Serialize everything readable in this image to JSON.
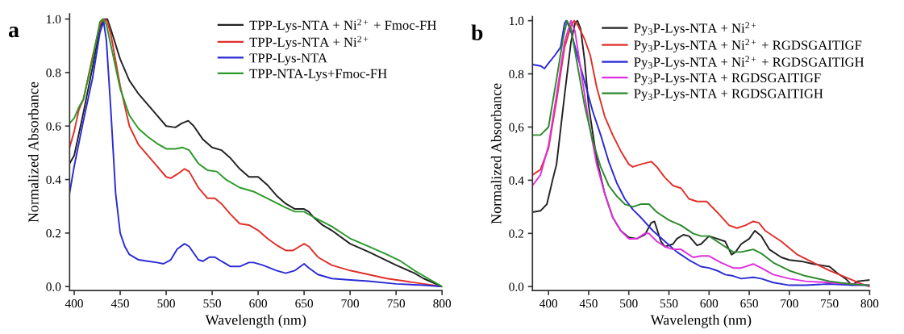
{
  "chart_data": [
    {
      "type": "line",
      "xlabel": "Wavelength (nm)",
      "ylabel": "Normalized Absorbance",
      "annotations": [
        "a"
      ],
      "legend": "top right",
      "grid": false,
      "marker": "none",
      "line_style": "solid",
      "xlim": [
        395,
        800
      ],
      "ylim": [
        -0.015,
        1.02
      ],
      "xticks": [
        400,
        450,
        500,
        550,
        600,
        650,
        700,
        750,
        800
      ],
      "yticks": [
        {
          "value": 0,
          "label": "0.0"
        },
        0.2,
        0.4,
        0.6,
        0.8,
        {
          "value": 1,
          "label": "1.0"
        }
      ],
      "series": [
        {
          "name": "TPP-Lys-NTA + Ni$^{2+}$ + Fmoc-FH",
          "color": "#222222",
          "x": [
            395,
            400,
            410,
            420,
            428,
            433,
            436,
            440,
            450,
            460,
            470,
            480,
            490,
            500,
            510,
            517,
            524,
            530,
            540,
            550,
            560,
            570,
            580,
            590,
            600,
            610,
            620,
            630,
            640,
            650,
            655,
            660,
            670,
            680,
            700,
            720,
            750,
            770,
            780,
            800
          ],
          "values": [
            0.46,
            0.49,
            0.65,
            0.82,
            0.97,
            1.0,
            1.0,
            0.96,
            0.85,
            0.77,
            0.72,
            0.68,
            0.64,
            0.6,
            0.595,
            0.61,
            0.62,
            0.6,
            0.55,
            0.52,
            0.51,
            0.48,
            0.44,
            0.41,
            0.41,
            0.38,
            0.34,
            0.31,
            0.29,
            0.29,
            0.28,
            0.26,
            0.23,
            0.21,
            0.16,
            0.13,
            0.08,
            0.05,
            0.03,
            0.0
          ]
        },
        {
          "name": "TPP-Lys-NTA + Ni$^{2+}$",
          "color": "#e0302a",
          "x": [
            395,
            400,
            405,
            410,
            420,
            428,
            432,
            436,
            440,
            450,
            460,
            470,
            480,
            490,
            500,
            505,
            512,
            520,
            525,
            535,
            545,
            553,
            560,
            570,
            580,
            590,
            600,
            610,
            620,
            630,
            638,
            645,
            650,
            655,
            665,
            680,
            700,
            720,
            740,
            760,
            780,
            800
          ],
          "values": [
            0.52,
            0.58,
            0.66,
            0.7,
            0.86,
            0.98,
            1.0,
            0.99,
            0.94,
            0.75,
            0.6,
            0.53,
            0.49,
            0.45,
            0.41,
            0.405,
            0.42,
            0.44,
            0.43,
            0.37,
            0.33,
            0.33,
            0.31,
            0.27,
            0.235,
            0.23,
            0.21,
            0.18,
            0.155,
            0.135,
            0.135,
            0.15,
            0.16,
            0.15,
            0.11,
            0.08,
            0.06,
            0.045,
            0.03,
            0.02,
            0.01,
            0.0
          ]
        },
        {
          "name": "TPP-Lys-NTA",
          "color": "#2b2bd6",
          "x": [
            395,
            400,
            410,
            420,
            428,
            432,
            435,
            440,
            445,
            450,
            455,
            460,
            470,
            480,
            490,
            497,
            505,
            512,
            520,
            525,
            535,
            540,
            547,
            553,
            560,
            570,
            580,
            590,
            595,
            605,
            620,
            630,
            640,
            650,
            655,
            665,
            680,
            700,
            720,
            750,
            780,
            800
          ],
          "values": [
            0.35,
            0.45,
            0.62,
            0.78,
            0.95,
            0.99,
            0.92,
            0.65,
            0.35,
            0.2,
            0.15,
            0.12,
            0.1,
            0.095,
            0.09,
            0.085,
            0.1,
            0.14,
            0.16,
            0.15,
            0.1,
            0.095,
            0.11,
            0.11,
            0.095,
            0.075,
            0.075,
            0.09,
            0.09,
            0.08,
            0.06,
            0.05,
            0.06,
            0.085,
            0.07,
            0.045,
            0.03,
            0.025,
            0.02,
            0.01,
            0.005,
            0.0
          ]
        },
        {
          "name": "TPP-NTA-Lys+Fmoc-FH",
          "color": "#2a9a2a",
          "x": [
            395,
            400,
            405,
            410,
            420,
            428,
            431,
            435,
            440,
            450,
            460,
            470,
            480,
            490,
            500,
            510,
            518,
            525,
            535,
            545,
            555,
            565,
            580,
            595,
            610,
            630,
            640,
            650,
            660,
            680,
            700,
            720,
            740,
            755,
            770,
            785,
            800
          ],
          "values": [
            0.61,
            0.63,
            0.67,
            0.7,
            0.85,
            0.99,
            1.0,
            0.98,
            0.9,
            0.74,
            0.64,
            0.59,
            0.56,
            0.535,
            0.515,
            0.515,
            0.52,
            0.51,
            0.46,
            0.435,
            0.43,
            0.4,
            0.37,
            0.355,
            0.33,
            0.295,
            0.28,
            0.28,
            0.26,
            0.225,
            0.18,
            0.15,
            0.12,
            0.095,
            0.06,
            0.03,
            0.0
          ]
        }
      ]
    },
    {
      "type": "line",
      "xlabel": "Wavelength (nm)",
      "ylabel": "Normalized Absorbance",
      "annotations": [
        "b"
      ],
      "legend": "top right",
      "grid": false,
      "marker": "none",
      "line_style": "solid",
      "xlim": [
        380,
        800
      ],
      "ylim": [
        -0.015,
        1.015
      ],
      "xticks": [
        400,
        450,
        500,
        550,
        600,
        650,
        700,
        750,
        800
      ],
      "yticks": [
        {
          "value": 0,
          "label": "0.0"
        },
        0.2,
        0.4,
        {
          "value": 0.6,
          "label": "0,6"
        },
        0.8,
        {
          "value": 1,
          "label": "1.0"
        }
      ],
      "series": [
        {
          "name": "Py$_{3}$P-Lys-NTA + Ni$^{2+}$",
          "color": "#222222",
          "x": [
            380,
            390,
            398,
            405,
            410,
            420,
            428,
            433,
            436,
            440,
            445,
            450,
            460,
            470,
            480,
            490,
            500,
            510,
            520,
            528,
            532,
            540,
            545,
            555,
            560,
            568,
            575,
            585,
            590,
            600,
            610,
            620,
            628,
            633,
            640,
            650,
            657,
            665,
            675,
            690,
            700,
            715,
            730,
            740,
            750,
            760,
            770,
            778,
            785,
            800
          ],
          "values": [
            0.28,
            0.285,
            0.31,
            0.4,
            0.46,
            0.72,
            0.92,
            0.99,
            1.0,
            0.97,
            0.85,
            0.68,
            0.48,
            0.35,
            0.26,
            0.21,
            0.185,
            0.18,
            0.195,
            0.24,
            0.245,
            0.17,
            0.15,
            0.16,
            0.18,
            0.195,
            0.19,
            0.155,
            0.16,
            0.19,
            0.18,
            0.17,
            0.12,
            0.13,
            0.16,
            0.18,
            0.21,
            0.19,
            0.14,
            0.11,
            0.1,
            0.095,
            0.085,
            0.08,
            0.075,
            0.05,
            0.03,
            0.005,
            0.02,
            0.025
          ]
        },
        {
          "name": "Py$_{3}$P-Lys-NTA + Ni$^{2+}$ + RGDSGAITIGF",
          "color": "#e0302a",
          "x": [
            380,
            390,
            400,
            410,
            420,
            428,
            432,
            437,
            445,
            452,
            460,
            470,
            480,
            490,
            500,
            505,
            515,
            528,
            535,
            545,
            555,
            565,
            575,
            585,
            597,
            610,
            625,
            635,
            645,
            655,
            662,
            670,
            690,
            710,
            730,
            750,
            770,
            790,
            800
          ],
          "values": [
            0.42,
            0.44,
            0.52,
            0.7,
            0.9,
            0.98,
            1.0,
            0.98,
            0.93,
            0.87,
            0.75,
            0.64,
            0.57,
            0.51,
            0.46,
            0.45,
            0.46,
            0.47,
            0.45,
            0.41,
            0.38,
            0.37,
            0.33,
            0.32,
            0.32,
            0.28,
            0.23,
            0.22,
            0.23,
            0.245,
            0.24,
            0.21,
            0.17,
            0.12,
            0.09,
            0.06,
            0.035,
            0.01,
            0.0
          ]
        },
        {
          "name": "Py$_{3}$P-Lys-NTA + Ni$^{2+}$ + RGDSGAITIGH",
          "color": "#2b2bd6",
          "x": [
            380,
            390,
            395,
            400,
            408,
            415,
            420,
            422,
            427,
            435,
            445,
            455,
            465,
            475,
            485,
            495,
            505,
            515,
            530,
            545,
            560,
            575,
            590,
            600,
            610,
            620,
            630,
            640,
            655,
            665,
            680,
            700,
            720,
            750,
            780,
            800
          ],
          "values": [
            0.835,
            0.83,
            0.82,
            0.84,
            0.87,
            0.9,
            0.99,
            1.0,
            0.97,
            0.88,
            0.77,
            0.66,
            0.57,
            0.47,
            0.39,
            0.33,
            0.29,
            0.26,
            0.21,
            0.17,
            0.13,
            0.1,
            0.075,
            0.07,
            0.06,
            0.045,
            0.04,
            0.03,
            0.035,
            0.03,
            0.015,
            0.005,
            0.005,
            0.01,
            0.005,
            0.005
          ]
        },
        {
          "name": "Py$_{3}$P-Lys-NTA + RGDSGAITIGF",
          "color": "#e030e0",
          "x": [
            380,
            390,
            400,
            410,
            420,
            428,
            433,
            440,
            450,
            460,
            470,
            480,
            490,
            500,
            510,
            520,
            525,
            535,
            545,
            555,
            565,
            580,
            590,
            600,
            615,
            630,
            640,
            655,
            665,
            680,
            700,
            720,
            750,
            780,
            800
          ],
          "values": [
            0.38,
            0.42,
            0.53,
            0.72,
            0.92,
            1.0,
            0.96,
            0.82,
            0.62,
            0.46,
            0.35,
            0.26,
            0.21,
            0.18,
            0.18,
            0.2,
            0.2,
            0.17,
            0.15,
            0.14,
            0.14,
            0.11,
            0.115,
            0.115,
            0.09,
            0.07,
            0.07,
            0.085,
            0.07,
            0.045,
            0.03,
            0.02,
            0.015,
            0.01,
            0.005
          ]
        },
        {
          "name": "Py$_{3}$P-Lys-NTA + RGDSGAITIGH",
          "color": "#2a8a2a",
          "x": [
            380,
            390,
            400,
            410,
            418,
            423,
            428,
            435,
            445,
            455,
            465,
            475,
            485,
            495,
            505,
            515,
            525,
            535,
            550,
            565,
            580,
            590,
            600,
            615,
            630,
            640,
            655,
            665,
            680,
            700,
            720,
            750,
            775,
            800
          ],
          "values": [
            0.57,
            0.57,
            0.6,
            0.78,
            0.93,
            1.0,
            0.97,
            0.85,
            0.68,
            0.55,
            0.45,
            0.38,
            0.34,
            0.31,
            0.3,
            0.31,
            0.31,
            0.28,
            0.25,
            0.23,
            0.2,
            0.19,
            0.19,
            0.16,
            0.13,
            0.13,
            0.14,
            0.125,
            0.09,
            0.06,
            0.04,
            0.02,
            0.01,
            0.005
          ]
        }
      ]
    }
  ]
}
